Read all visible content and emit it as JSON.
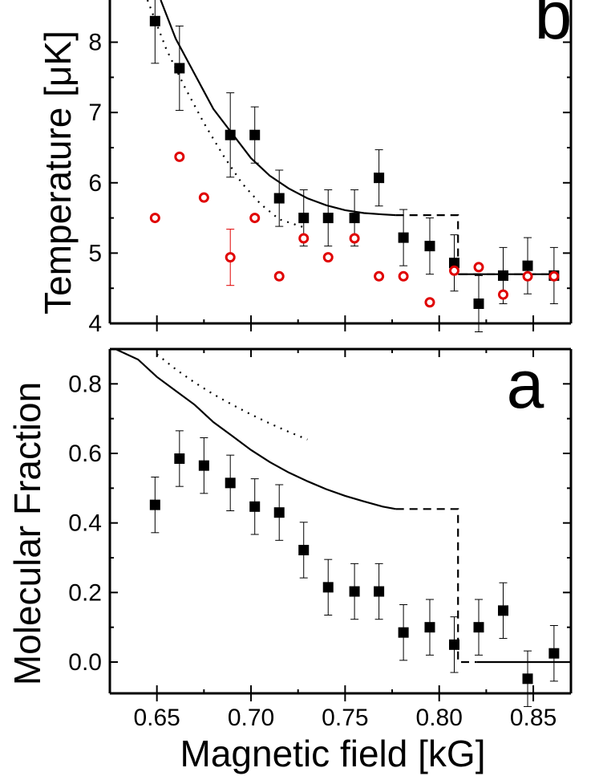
{
  "chart_data": [
    {
      "panel": "b",
      "type": "scatter",
      "panel_label": "b",
      "xlabel": "",
      "ylabel": "Temperature [μK]",
      "xlim": [
        0.625,
        0.87
      ],
      "ylim": [
        4,
        8.6
      ],
      "yticks": [
        4,
        5,
        6,
        7,
        8
      ],
      "ytick_labels": [
        "4",
        "5",
        "6",
        "7",
        "8"
      ],
      "series": [
        {
          "name": "black squares",
          "marker": "square",
          "color": "#000000",
          "points": [
            {
              "x": 0.649,
              "y": 8.3,
              "err": 0.6
            },
            {
              "x": 0.662,
              "y": 7.63,
              "err": 0.6
            },
            {
              "x": 0.689,
              "y": 6.68,
              "err": 0.6
            },
            {
              "x": 0.702,
              "y": 6.68,
              "err": 0.4
            },
            {
              "x": 0.715,
              "y": 5.78,
              "err": 0.4
            },
            {
              "x": 0.728,
              "y": 5.5,
              "err": 0.4
            },
            {
              "x": 0.741,
              "y": 5.5,
              "err": 0.4
            },
            {
              "x": 0.755,
              "y": 5.5,
              "err": 0.4
            },
            {
              "x": 0.768,
              "y": 6.07,
              "err": 0.4
            },
            {
              "x": 0.781,
              "y": 5.22,
              "err": 0.4
            },
            {
              "x": 0.795,
              "y": 5.1,
              "err": 0.4
            },
            {
              "x": 0.808,
              "y": 4.86,
              "err": 0.4
            },
            {
              "x": 0.821,
              "y": 4.28,
              "err": 0.4
            },
            {
              "x": 0.834,
              "y": 4.68,
              "err": 0.4
            },
            {
              "x": 0.847,
              "y": 4.82,
              "err": 0.4
            },
            {
              "x": 0.861,
              "y": 4.68,
              "err": 0.4
            }
          ]
        },
        {
          "name": "red circles",
          "marker": "open-circle",
          "color": "#e00000",
          "points": [
            {
              "x": 0.649,
              "y": 5.5
            },
            {
              "x": 0.662,
              "y": 6.37
            },
            {
              "x": 0.675,
              "y": 5.79
            },
            {
              "x": 0.689,
              "y": 4.94,
              "err": 0.4
            },
            {
              "x": 0.702,
              "y": 5.5
            },
            {
              "x": 0.715,
              "y": 4.67
            },
            {
              "x": 0.728,
              "y": 5.21
            },
            {
              "x": 0.741,
              "y": 4.94
            },
            {
              "x": 0.755,
              "y": 5.21
            },
            {
              "x": 0.768,
              "y": 4.67
            },
            {
              "x": 0.781,
              "y": 4.67
            },
            {
              "x": 0.795,
              "y": 4.3
            },
            {
              "x": 0.808,
              "y": 4.75
            },
            {
              "x": 0.821,
              "y": 4.8
            },
            {
              "x": 0.834,
              "y": 4.41
            },
            {
              "x": 0.847,
              "y": 4.67
            },
            {
              "x": 0.861,
              "y": 4.67
            }
          ]
        }
      ],
      "curves": [
        {
          "name": "solid curve",
          "style": "solid",
          "x": [
            0.652,
            0.66,
            0.67,
            0.68,
            0.69,
            0.7,
            0.71,
            0.72,
            0.73,
            0.74,
            0.75,
            0.76,
            0.77,
            0.777
          ],
          "y": [
            8.6,
            8.05,
            7.55,
            7.05,
            6.7,
            6.35,
            6.1,
            5.92,
            5.78,
            5.68,
            5.61,
            5.57,
            5.55,
            5.54
          ]
        },
        {
          "name": "dashed curve",
          "style": "dashed",
          "x": [
            0.777,
            0.79,
            0.8,
            0.81,
            0.81,
            0.82,
            0.84,
            0.862
          ],
          "y": [
            5.54,
            5.54,
            5.54,
            5.54,
            4.7,
            4.7,
            4.7,
            4.7
          ]
        },
        {
          "name": "dotted curve",
          "style": "dotted",
          "x": [
            0.645,
            0.655,
            0.665,
            0.675,
            0.685,
            0.695,
            0.705,
            0.715,
            0.73
          ],
          "y": [
            8.6,
            7.9,
            7.35,
            6.85,
            6.4,
            6.0,
            5.7,
            5.48,
            5.35
          ]
        },
        {
          "name": "solid tail",
          "style": "solid",
          "x": [
            0.81,
            0.862
          ],
          "y": [
            4.7,
            4.7
          ]
        }
      ]
    },
    {
      "panel": "a",
      "type": "scatter",
      "panel_label": "a",
      "xlabel": "Magnetic field [kG]",
      "ylabel": "Molecular Fraction",
      "xlim": [
        0.625,
        0.87
      ],
      "ylim": [
        -0.09,
        0.9
      ],
      "xticks": [
        0.65,
        0.7,
        0.75,
        0.8,
        0.85
      ],
      "xtick_labels": [
        "0.65",
        "0.70",
        "0.75",
        "0.80",
        "0.85"
      ],
      "yticks": [
        0.0,
        0.2,
        0.4,
        0.6,
        0.8
      ],
      "ytick_labels": [
        "0.0",
        "0.2",
        "0.4",
        "0.6",
        "0.8"
      ],
      "series": [
        {
          "name": "black squares",
          "marker": "square",
          "color": "#000000",
          "points": [
            {
              "x": 0.649,
              "y": 0.452,
              "err": 0.08
            },
            {
              "x": 0.662,
              "y": 0.585,
              "err": 0.08
            },
            {
              "x": 0.675,
              "y": 0.565,
              "err": 0.08
            },
            {
              "x": 0.689,
              "y": 0.515,
              "err": 0.08
            },
            {
              "x": 0.702,
              "y": 0.447,
              "err": 0.08
            },
            {
              "x": 0.715,
              "y": 0.43,
              "err": 0.08
            },
            {
              "x": 0.728,
              "y": 0.322,
              "err": 0.08
            },
            {
              "x": 0.741,
              "y": 0.215,
              "err": 0.08
            },
            {
              "x": 0.755,
              "y": 0.203,
              "err": 0.08
            },
            {
              "x": 0.768,
              "y": 0.203,
              "err": 0.08
            },
            {
              "x": 0.781,
              "y": 0.085,
              "err": 0.08
            },
            {
              "x": 0.795,
              "y": 0.1,
              "err": 0.08
            },
            {
              "x": 0.808,
              "y": 0.05,
              "err": 0.08
            },
            {
              "x": 0.821,
              "y": 0.1,
              "err": 0.08
            },
            {
              "x": 0.834,
              "y": 0.148,
              "err": 0.08
            },
            {
              "x": 0.847,
              "y": -0.048,
              "err": 0.08
            },
            {
              "x": 0.861,
              "y": 0.025,
              "err": 0.08
            }
          ]
        }
      ],
      "curves": [
        {
          "name": "solid curve",
          "style": "solid",
          "x": [
            0.628,
            0.64,
            0.65,
            0.66,
            0.67,
            0.68,
            0.69,
            0.7,
            0.71,
            0.72,
            0.73,
            0.74,
            0.75,
            0.76,
            0.77,
            0.777
          ],
          "y": [
            0.9,
            0.87,
            0.82,
            0.78,
            0.74,
            0.69,
            0.65,
            0.61,
            0.575,
            0.545,
            0.52,
            0.497,
            0.478,
            0.462,
            0.447,
            0.44
          ]
        },
        {
          "name": "dashed curve",
          "style": "dashed",
          "x": [
            0.777,
            0.79,
            0.8,
            0.81,
            0.81,
            0.82
          ],
          "y": [
            0.44,
            0.44,
            0.44,
            0.44,
            0.0,
            0.0
          ]
        },
        {
          "name": "solid tail",
          "style": "solid",
          "x": [
            0.82,
            0.87
          ],
          "y": [
            0.0,
            0.0
          ]
        },
        {
          "name": "dotted curve",
          "style": "dotted",
          "x": [
            0.65,
            0.66,
            0.67,
            0.68,
            0.69,
            0.7,
            0.71,
            0.72,
            0.73
          ],
          "y": [
            0.885,
            0.842,
            0.804,
            0.77,
            0.74,
            0.712,
            0.686,
            0.662,
            0.64
          ]
        }
      ]
    }
  ]
}
